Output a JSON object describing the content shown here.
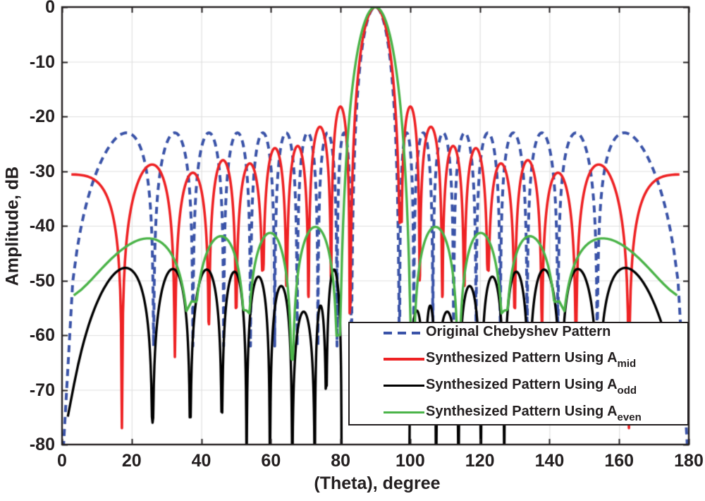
{
  "chart_data": {
    "type": "line",
    "title": "",
    "xlabel": "(Theta), degree",
    "ylabel": "Amplitude, dB",
    "xlim": [
      0,
      180
    ],
    "ylim": [
      -80,
      0
    ],
    "grid": true,
    "xticks": {
      "values": [
        0,
        20,
        40,
        60,
        80,
        100,
        120,
        140,
        160,
        180
      ],
      "labels": [
        "0",
        "20",
        "40",
        "60",
        "80",
        "100",
        "120",
        "140",
        "160",
        "180"
      ]
    },
    "yticks": {
      "values": [
        0,
        -10,
        -20,
        -30,
        -40,
        -50,
        -60,
        -70,
        -80
      ],
      "labels": [
        "0",
        "-10",
        "-20",
        "-30",
        "-40",
        "-50",
        "-60",
        "-70",
        "-80"
      ]
    },
    "colors": {
      "grid": "#e0e0e0",
      "axis": "#231f20",
      "background": "#ffffff"
    },
    "legend_position": "lower-right",
    "legend": {
      "entries": [
        {
          "label": "Original Chebyshev Pattern",
          "sub": ""
        },
        {
          "label": "Synthesized Pattern Using A",
          "sub": "mid"
        },
        {
          "label": "Synthesized Pattern Using A",
          "sub": "odd"
        },
        {
          "label": "Synthesized Pattern Using A",
          "sub": "even"
        }
      ]
    },
    "lobe_format": "[u1, u2, peak_dB, null1_dB, null2_dB, shape_power]; u = cos(theta), lobe amplitude = peak_dB + 20*log10(sin(pi*t)^p) floored at interpolated null depth; main-beam peak 0 dB at theta = 90 deg",
    "series": [
      {
        "name": "Original Chebyshev Pattern",
        "color": "#3a53a8",
        "dash": [
          10,
          7
        ],
        "width": 4,
        "sidelobe_level_db": -23,
        "lobes": [
          [
            1.0,
            0.8965,
            -23,
            -85,
            -62,
            1
          ],
          [
            0.8965,
            0.7925,
            -23,
            -62,
            -62,
            1
          ],
          [
            0.7925,
            0.6893,
            -23,
            -62,
            -62,
            1
          ],
          [
            0.6893,
            0.586,
            -23,
            -62,
            -62,
            1
          ],
          [
            0.586,
            0.4835,
            -23,
            -62,
            -62,
            1
          ],
          [
            0.4835,
            0.3821,
            -23,
            -62,
            -62,
            1
          ],
          [
            0.3821,
            0.284,
            -23,
            -62,
            -62,
            1
          ],
          [
            0.284,
            0.1912,
            -23,
            -62,
            -62,
            1
          ],
          [
            0.1912,
            0.1212,
            -23,
            -62,
            -72,
            1
          ],
          [
            0.1212,
            -0.1212,
            0,
            -72,
            -72,
            2
          ],
          [
            -0.1212,
            -0.1912,
            -23,
            -72,
            -62,
            1
          ],
          [
            -0.1912,
            -0.284,
            -23,
            -62,
            -62,
            1
          ],
          [
            -0.284,
            -0.3821,
            -23,
            -62,
            -62,
            1
          ],
          [
            -0.3821,
            -0.4835,
            -23,
            -62,
            -62,
            1
          ],
          [
            -0.4835,
            -0.586,
            -23,
            -62,
            -62,
            1
          ],
          [
            -0.586,
            -0.6893,
            -23,
            -62,
            -62,
            1
          ],
          [
            -0.6893,
            -0.7925,
            -23,
            -62,
            -62,
            1
          ],
          [
            -0.7925,
            -0.8965,
            -23,
            -62,
            -62,
            1
          ],
          [
            -0.8965,
            -1.0,
            -23,
            -62,
            -85,
            1
          ]
        ]
      },
      {
        "name": "Synthesized Pattern Using A_mid",
        "color": "#ee2224",
        "dash": [],
        "width": 3.6,
        "lobes": [
          [
            1.045,
            0.9553,
            -30.6,
            -80,
            -77,
            1
          ],
          [
            0.9553,
            0.8443,
            -28.8,
            -77,
            -64,
            1
          ],
          [
            0.8443,
            0.7408,
            -30.3,
            -64,
            -58,
            1
          ],
          [
            0.7408,
            0.6428,
            -28.0,
            -58,
            -55,
            1
          ],
          [
            0.6428,
            0.5344,
            -28.6,
            -55,
            -48,
            1
          ],
          [
            0.5344,
            0.4305,
            -25.8,
            -48,
            -51,
            1
          ],
          [
            0.4305,
            0.3289,
            -25.4,
            -51,
            -53,
            1
          ],
          [
            0.3289,
            0.2198,
            -21.9,
            -53,
            -50,
            1
          ],
          [
            0.2198,
            0.1288,
            -18.2,
            -50,
            -56,
            1
          ],
          [
            0.1288,
            -0.1288,
            0,
            -56,
            -39,
            2
          ],
          [
            -0.1288,
            -0.2198,
            -18.2,
            -39,
            -50,
            1
          ],
          [
            -0.2198,
            -0.3289,
            -21.9,
            -50,
            -53,
            1
          ],
          [
            -0.3289,
            -0.4305,
            -25.4,
            -53,
            -51,
            1
          ],
          [
            -0.4305,
            -0.5344,
            -25.8,
            -51,
            -48,
            1
          ],
          [
            -0.5344,
            -0.6428,
            -28.6,
            -48,
            -55,
            1
          ],
          [
            -0.6428,
            -0.7408,
            -28.0,
            -55,
            -58,
            1
          ],
          [
            -0.7408,
            -0.8443,
            -30.3,
            -58,
            -64,
            1
          ],
          [
            -0.8443,
            -0.9553,
            -28.8,
            -64,
            -77,
            1
          ],
          [
            -0.9553,
            -1.045,
            -30.6,
            -77,
            -80,
            1
          ]
        ]
      },
      {
        "name": "Synthesized Pattern Using A_odd",
        "color": "#000000",
        "dash": [],
        "width": 3.4,
        "lobes": [
          [
            1.001,
            0.8988,
            -47.7,
            -90,
            -76,
            1
          ],
          [
            0.8988,
            0.8007,
            -47.9,
            -76,
            -75,
            1
          ],
          [
            0.8007,
            0.6959,
            -48.0,
            -75,
            -74,
            1
          ],
          [
            0.6959,
            0.6018,
            -48.4,
            -74,
            -85,
            1
          ],
          [
            0.6018,
            0.5045,
            -49.3,
            -85,
            -85,
            1
          ],
          [
            0.5045,
            0.4051,
            -51.0,
            -85,
            -85,
            1
          ],
          [
            0.4051,
            0.299,
            -55.7,
            -85,
            -85,
            1
          ],
          [
            0.299,
            0.2436,
            -54.6,
            -85,
            -69,
            1
          ],
          [
            0.2436,
            0.1685,
            -48.0,
            -69,
            -90,
            1
          ],
          [
            -0.1685,
            -0.2436,
            -55.5,
            -90,
            -69,
            1
          ],
          [
            -0.2436,
            -0.299,
            -54.6,
            -69,
            -85,
            1
          ],
          [
            -0.299,
            -0.4051,
            -55.7,
            -85,
            -85,
            1
          ],
          [
            -0.4051,
            -0.5045,
            -51.0,
            -85,
            -85,
            1
          ],
          [
            -0.5045,
            -0.6018,
            -49.3,
            -85,
            -85,
            1
          ],
          [
            -0.6018,
            -0.6959,
            -48.4,
            -85,
            -74,
            1
          ],
          [
            -0.6959,
            -0.8007,
            -48.0,
            -74,
            -75,
            1
          ],
          [
            -0.8007,
            -0.8988,
            -47.9,
            -75,
            -76,
            1
          ],
          [
            -0.8988,
            -1.001,
            -47.7,
            -76,
            -90,
            1
          ]
        ]
      },
      {
        "name": "Synthesized Pattern Using A_even",
        "color": "#4bb449",
        "dash": [],
        "width": 3.4,
        "lobes": [
          [
            1.02,
            0.7965,
            -42.3,
            -80,
            -53.8,
            1
          ],
          [
            0.7965,
            0.6018,
            -41.9,
            -53.8,
            -55.5,
            1
          ],
          [
            0.6018,
            0.4051,
            -41.3,
            -55.5,
            -64.5,
            1
          ],
          [
            0.4051,
            0.1874,
            -40.2,
            -64.5,
            -60,
            1
          ],
          [
            0.1874,
            -0.1874,
            0,
            -60,
            -60,
            3
          ],
          [
            -0.1874,
            -0.4051,
            -40.2,
            -60,
            -64.5,
            1
          ],
          [
            -0.4051,
            -0.6018,
            -41.3,
            -64.5,
            -55.5,
            1
          ],
          [
            -0.6018,
            -0.7965,
            -41.9,
            -55.5,
            -53.8,
            1
          ],
          [
            -0.7965,
            -1.02,
            -42.3,
            -53.8,
            -80,
            1
          ]
        ]
      }
    ]
  }
}
